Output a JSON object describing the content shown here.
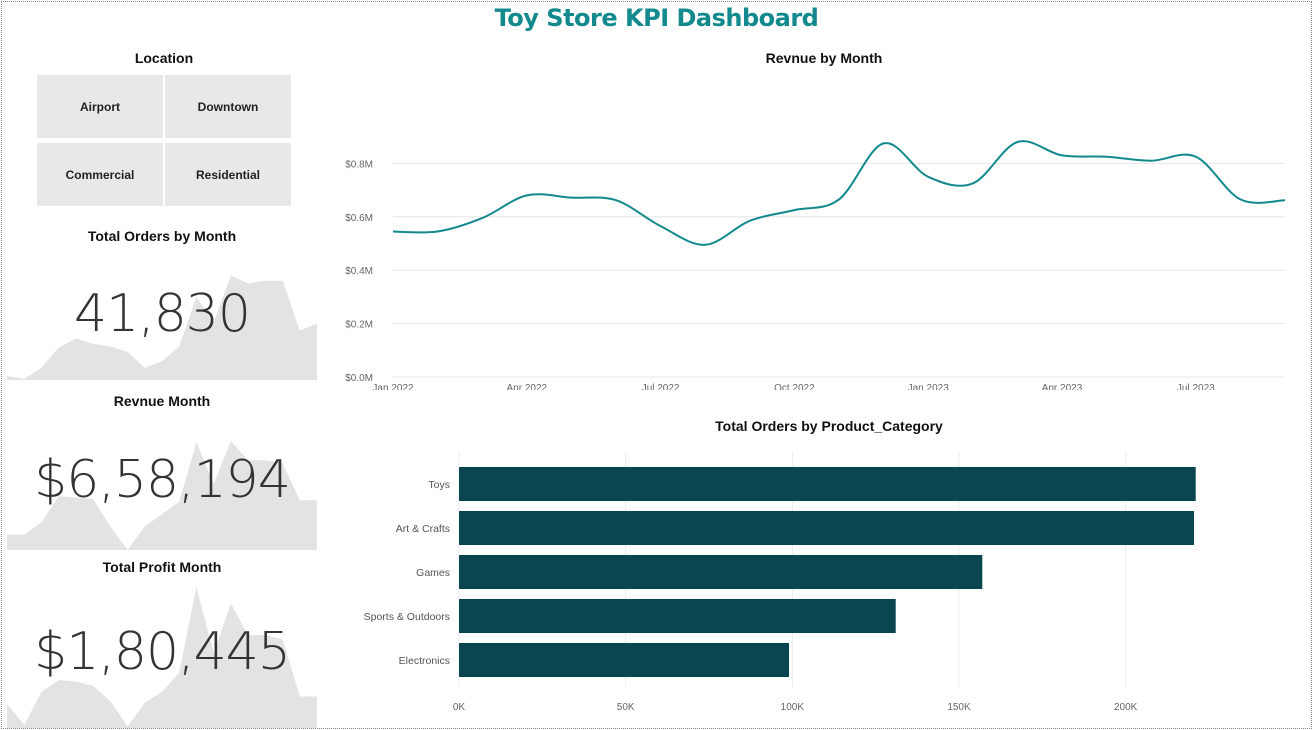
{
  "dashboard_title": "Toy Store KPI Dashboard",
  "slicer": {
    "title": "Location",
    "options": [
      "Airport",
      "Downtown",
      "Commercial",
      "Residential"
    ]
  },
  "kpis": [
    {
      "title": "Total Orders by Month",
      "value": "41,830"
    },
    {
      "title": "Revnue Month",
      "value": "$6,58,194"
    },
    {
      "title": "Total Profit Month",
      "value": "$1,80,445"
    }
  ],
  "colors": {
    "title": "#11898d",
    "line": "#11898d",
    "bar": "#0a4650",
    "sparkline": "#e3e3e3"
  },
  "chart_data": [
    {
      "type": "line",
      "title": "Revnue by Month",
      "x": [
        "2022-01",
        "2022-02",
        "2022-03",
        "2022-04",
        "2022-05",
        "2022-06",
        "2022-07",
        "2022-08",
        "2022-09",
        "2022-10",
        "2022-11",
        "2022-12",
        "2023-01",
        "2023-02",
        "2023-03",
        "2023-04",
        "2023-05",
        "2023-06",
        "2023-07",
        "2023-08",
        "2023-09"
      ],
      "values": [
        0.545,
        0.545,
        0.595,
        0.68,
        0.672,
        0.662,
        0.565,
        0.495,
        0.585,
        0.625,
        0.665,
        0.875,
        0.75,
        0.725,
        0.88,
        0.83,
        0.825,
        0.81,
        0.825,
        0.665,
        0.662
      ],
      "x_ticks": [
        "Jan 2022",
        "Apr 2022",
        "Jul 2022",
        "Oct 2022",
        "Jan 2023",
        "Apr 2023",
        "Jul 2023"
      ],
      "y_ticks": [
        "$0.0M",
        "$0.2M",
        "$0.4M",
        "$0.6M",
        "$0.8M"
      ],
      "ylim": [
        0,
        1.0
      ],
      "grid": true
    },
    {
      "type": "bar",
      "orientation": "horizontal",
      "title": "Total Orders by Product_Category",
      "categories": [
        "Toys",
        "Art & Crafts",
        "Games",
        "Sports & Outdoors",
        "Electronics"
      ],
      "values": [
        221000,
        220500,
        157000,
        131000,
        99000
      ],
      "x_ticks": [
        "0K",
        "50K",
        "100K",
        "150K",
        "200K"
      ],
      "xlim": [
        0,
        240000
      ],
      "grid": true
    }
  ],
  "sparklines": {
    "orders": [
      3,
      1,
      9,
      24,
      31,
      27,
      25,
      21,
      9,
      14,
      25,
      62,
      43,
      78,
      72,
      74,
      74,
      37,
      42
    ],
    "revenue": [
      11,
      11,
      20,
      39,
      38,
      37,
      17,
      0,
      17,
      26,
      35,
      78,
      48,
      79,
      65,
      65,
      63,
      36,
      36
    ],
    "profit": [
      16,
      2,
      24,
      32,
      31,
      28,
      18,
      1,
      17,
      24,
      37,
      94,
      50,
      83,
      62,
      62,
      59,
      21,
      21
    ]
  }
}
